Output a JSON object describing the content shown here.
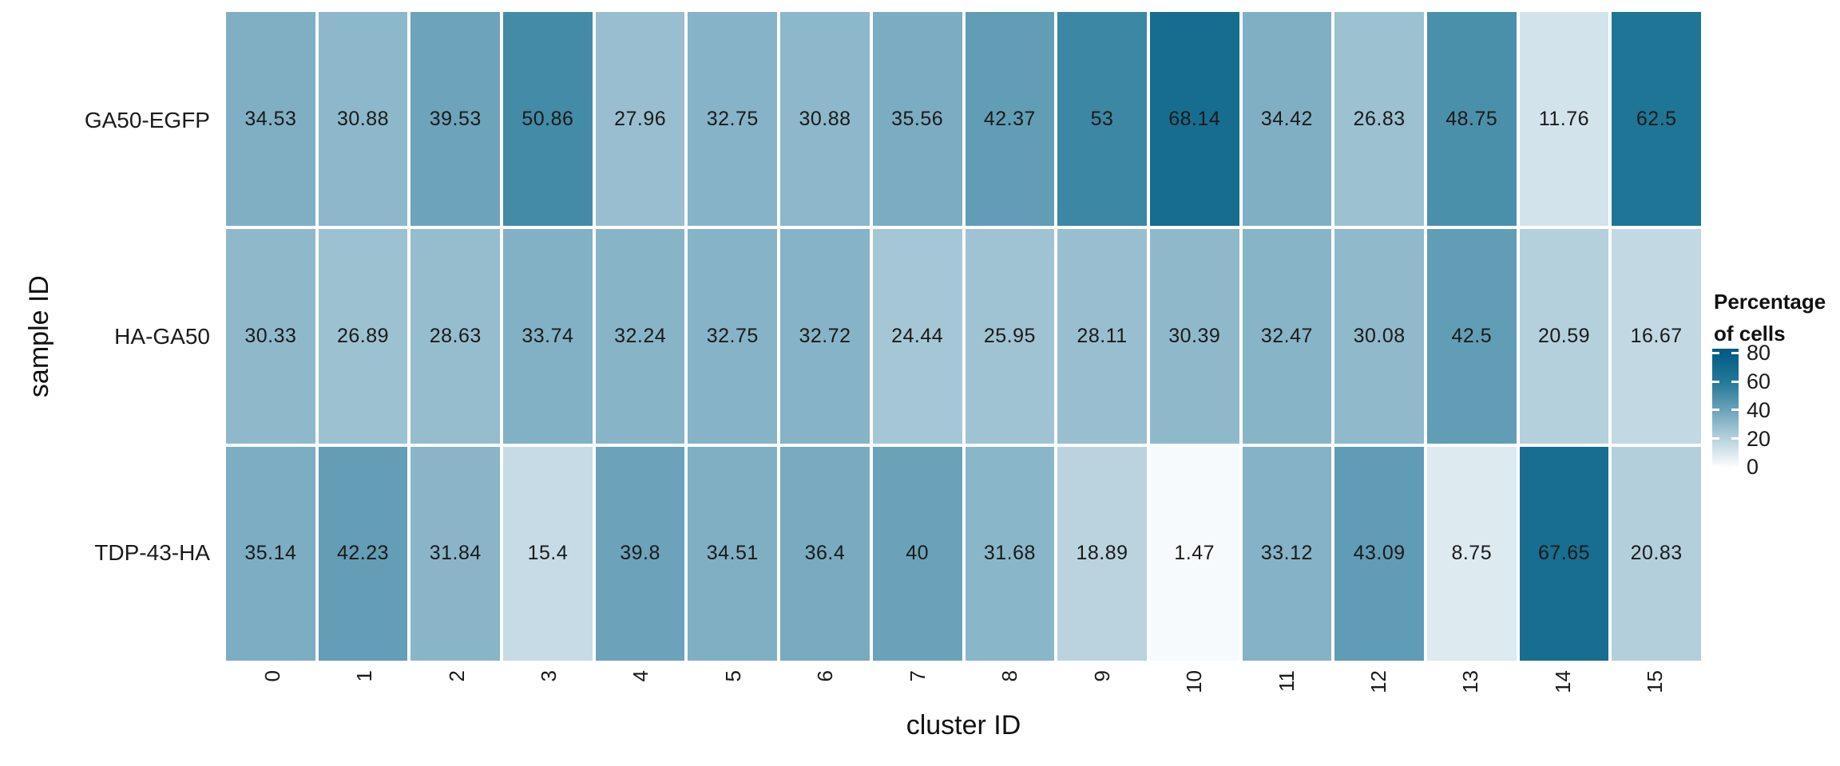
{
  "chart_data": {
    "type": "heatmap",
    "title": "",
    "xlabel": "cluster ID",
    "ylabel": "sample ID",
    "x_categories": [
      "0",
      "1",
      "2",
      "3",
      "4",
      "5",
      "6",
      "7",
      "8",
      "9",
      "10",
      "11",
      "12",
      "13",
      "14",
      "15"
    ],
    "y_categories": [
      "GA50-EGFP",
      "HA-GA50",
      "TDP-43-HA"
    ],
    "series": [
      {
        "name": "GA50-EGFP",
        "values": [
          34.53,
          30.88,
          39.53,
          50.86,
          27.96,
          32.75,
          30.88,
          35.56,
          42.37,
          53,
          68.14,
          34.42,
          26.83,
          48.75,
          11.76,
          62.5
        ]
      },
      {
        "name": "HA-GA50",
        "values": [
          30.33,
          26.89,
          28.63,
          33.74,
          32.24,
          32.75,
          32.72,
          24.44,
          25.95,
          28.11,
          30.39,
          32.47,
          30.08,
          42.5,
          20.59,
          16.67
        ]
      },
      {
        "name": "TDP-43-HA",
        "values": [
          35.14,
          42.23,
          31.84,
          15.4,
          39.8,
          34.51,
          36.4,
          40,
          31.68,
          18.89,
          1.47,
          33.12,
          43.09,
          8.75,
          67.65,
          20.83
        ]
      }
    ],
    "value_labels_shown": true,
    "legend": {
      "title_lines": [
        "Percentage",
        "of cells"
      ],
      "tick_labels": [
        "80",
        "60",
        "40",
        "20",
        "0"
      ],
      "tick_values": [
        80,
        60,
        40,
        20,
        0
      ],
      "bar_value_top": 83,
      "bar_value_bottom": -1
    },
    "color_scale_stops": [
      {
        "value": 0,
        "color": "#FCFDFE"
      },
      {
        "value": 20,
        "color": "#B6D1DD"
      },
      {
        "value": 40,
        "color": "#6BA2BA"
      },
      {
        "value": 60,
        "color": "#227897"
      },
      {
        "value": 80,
        "color": "#045D85"
      }
    ],
    "colors": {
      "cell_text": "#1a1a1a",
      "axis_text": "#111111",
      "grid_gap": "#ffffff"
    },
    "layout": {
      "grid_on": false,
      "legend_position": "right",
      "x_tick_rotation_deg": 90,
      "rows": 3,
      "cols": 16
    }
  }
}
